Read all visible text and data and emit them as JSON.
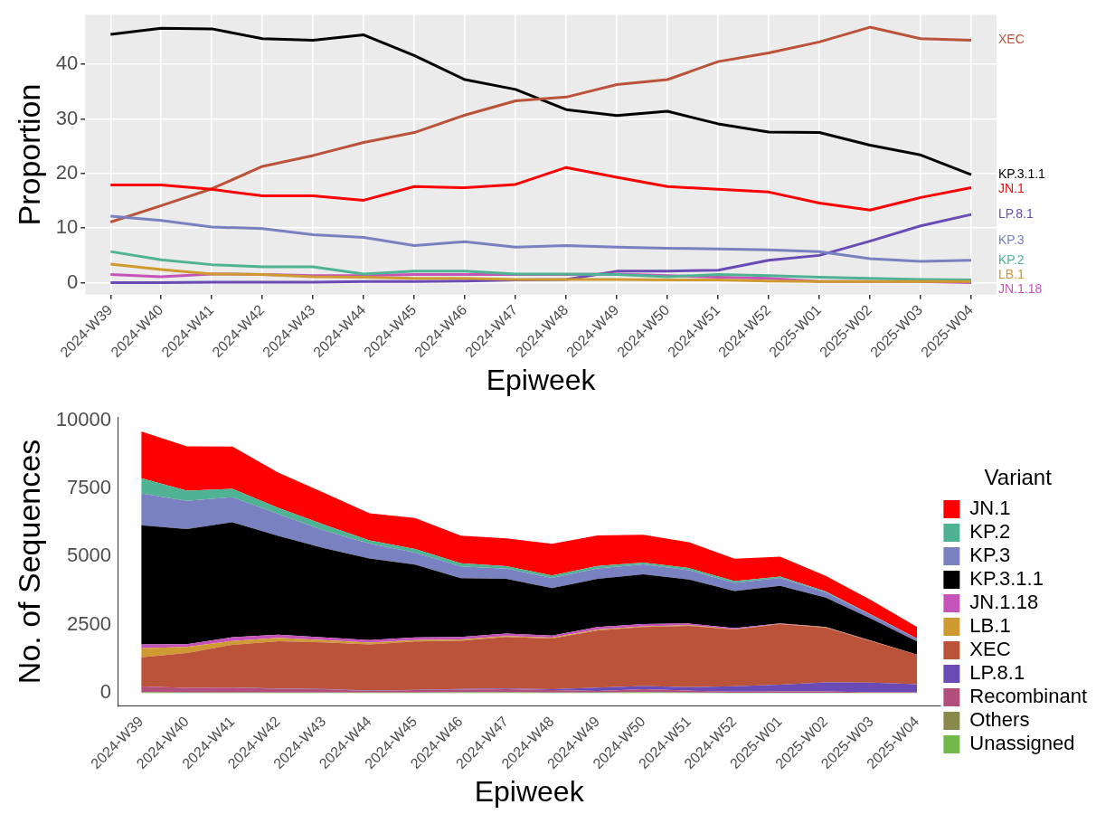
{
  "chart_data": [
    {
      "type": "line",
      "xlabel": "Epiweek",
      "ylabel": "Proportion",
      "categories": [
        "2024-W39",
        "2024-W40",
        "2024-W41",
        "2024-W42",
        "2024-W43",
        "2024-W44",
        "2024-W45",
        "2024-W46",
        "2024-W47",
        "2024-W48",
        "2024-W49",
        "2024-W50",
        "2024-W51",
        "2024-W52",
        "2025-W01",
        "2025-W02",
        "2025-W03",
        "2025-W04"
      ],
      "ylim": [
        -2.2,
        49.1
      ],
      "yticks": [
        0,
        10,
        20,
        30,
        40
      ],
      "grid": true,
      "series": [
        {
          "name": "KP.3.1.1",
          "color": "#000000",
          "values": [
            45.5,
            46.6,
            46.5,
            44.7,
            44.4,
            45.4,
            41.6,
            37.2,
            35.4,
            31.7,
            30.6,
            31.4,
            29.1,
            27.6,
            27.5,
            25.2,
            23.4,
            19.8
          ]
        },
        {
          "name": "XEC",
          "color": "#bb533b",
          "values": [
            11.1,
            14.1,
            17.2,
            21.3,
            23.3,
            25.7,
            27.5,
            30.7,
            33.3,
            34.0,
            36.3,
            37.2,
            40.5,
            42.1,
            44.1,
            46.8,
            44.7,
            44.4
          ]
        },
        {
          "name": "JN.1",
          "color": "#ff0000",
          "values": [
            17.9,
            17.9,
            17.1,
            15.9,
            15.9,
            15.1,
            17.6,
            17.4,
            18.0,
            21.1,
            19.3,
            17.6,
            17.1,
            16.6,
            14.6,
            13.3,
            15.6,
            17.4
          ]
        },
        {
          "name": "LP.8.1",
          "color": "#6a4ab4",
          "values": [
            0,
            0,
            0.1,
            0.1,
            0.1,
            0.2,
            0.2,
            0.3,
            0.5,
            0.6,
            2.1,
            2.1,
            2.3,
            4.1,
            5.0,
            7.6,
            10.4,
            12.5
          ]
        },
        {
          "name": "KP.3",
          "color": "#7a81c0",
          "values": [
            12.2,
            11.4,
            10.2,
            9.9,
            8.8,
            8.3,
            6.8,
            7.5,
            6.5,
            6.8,
            6.5,
            6.3,
            6.2,
            6.0,
            5.7,
            4.4,
            3.9,
            4.1
          ]
        },
        {
          "name": "JN.1.18",
          "color": "#c653b9",
          "values": [
            1.5,
            1.1,
            1.6,
            1.5,
            1.3,
            1.3,
            1.5,
            1.5,
            1.5,
            1.5,
            1.6,
            1.3,
            1.0,
            0.8,
            0.2,
            0.2,
            0.2,
            0
          ]
        },
        {
          "name": "KP.2",
          "color": "#4fb393",
          "values": [
            5.7,
            4.2,
            3.3,
            2.9,
            2.9,
            1.6,
            2.1,
            2.1,
            1.6,
            1.6,
            1.5,
            1.1,
            1.5,
            1.3,
            1.0,
            0.8,
            0.6,
            0.5
          ]
        },
        {
          "name": "LB.1",
          "color": "#cf9a31",
          "values": [
            3.4,
            2.4,
            1.6,
            1.5,
            1.1,
            1.0,
            0.8,
            0.8,
            0.6,
            0.6,
            0.6,
            0.5,
            0.5,
            0.3,
            0.2,
            0.2,
            0.2,
            0.2
          ]
        }
      ]
    },
    {
      "type": "area",
      "stacked": true,
      "xlabel": "Epiweek",
      "ylabel": "No. of Sequences",
      "legend": "right",
      "legend_title": "Variant",
      "categories": [
        "2024-W39",
        "2024-W40",
        "2024-W41",
        "2024-W42",
        "2024-W43",
        "2024-W44",
        "2024-W45",
        "2024-W46",
        "2024-W47",
        "2024-W48",
        "2024-W49",
        "2024-W50",
        "2024-W51",
        "2024-W52",
        "2025-W01",
        "2025-W02",
        "2025-W03",
        "2025-W04"
      ],
      "ylim": [
        -480,
        10110
      ],
      "yticks": [
        0,
        2500,
        5000,
        7500,
        10000
      ],
      "series": [
        {
          "name": "Unassigned",
          "color": "#72b84a",
          "values": [
            30,
            20,
            20,
            20,
            20,
            20,
            20,
            30,
            30,
            20,
            20,
            30,
            20,
            10,
            10,
            10,
            10,
            10
          ]
        },
        {
          "name": "Others",
          "color": "#88894a",
          "values": [
            null,
            null,
            null,
            null,
            null,
            null,
            null,
            null,
            null,
            null,
            null,
            null,
            null,
            null,
            null,
            null,
            null,
            null
          ]
        },
        {
          "name": "Recombinant",
          "color": "#b24e7c",
          "values": [
            210,
            170,
            180,
            140,
            120,
            60,
            90,
            100,
            110,
            90,
            60,
            110,
            70,
            40,
            50,
            50,
            20,
            20
          ]
        },
        {
          "name": "LP.8.1",
          "color": "#6a4ab4",
          "values": [
            0,
            0,
            10,
            10,
            10,
            10,
            10,
            20,
            30,
            30,
            120,
            120,
            130,
            200,
            250,
            330,
            350,
            300
          ]
        },
        {
          "name": "XEC",
          "color": "#bb533b",
          "values": [
            1070,
            1280,
            1560,
            1730,
            1710,
            1690,
            1770,
            1770,
            1890,
            1860,
            2100,
            2160,
            2240,
            2080,
            2220,
            2010,
            1520,
            1080
          ]
        },
        {
          "name": "LB.1",
          "color": "#cf9a31",
          "values": [
            330,
            220,
            140,
            120,
            80,
            70,
            50,
            50,
            30,
            30,
            30,
            30,
            30,
            10,
            10,
            10,
            10,
            0
          ]
        },
        {
          "name": "JN.1.18",
          "color": "#c653b9",
          "values": [
            140,
            100,
            140,
            120,
            100,
            90,
            100,
            90,
            90,
            80,
            90,
            80,
            60,
            40,
            10,
            10,
            10,
            0
          ]
        },
        {
          "name": "KP.3.1.1",
          "color": "#000000",
          "values": [
            4370,
            4220,
            4210,
            3620,
            3270,
            2990,
            2670,
            2150,
            2010,
            1740,
            1770,
            1820,
            1610,
            1360,
            1380,
            1080,
            800,
            480
          ]
        },
        {
          "name": "KP.3",
          "color": "#7a81c0",
          "values": [
            1170,
            1030,
            920,
            800,
            650,
            550,
            440,
            430,
            370,
            370,
            380,
            370,
            340,
            300,
            290,
            190,
            130,
            100
          ]
        },
        {
          "name": "KP.2",
          "color": "#4fb393",
          "values": [
            550,
            380,
            300,
            230,
            210,
            110,
            130,
            120,
            90,
            90,
            90,
            60,
            80,
            60,
            50,
            30,
            20,
            10
          ]
        },
        {
          "name": "JN.1",
          "color": "#ff0000",
          "values": [
            1720,
            1620,
            1550,
            1290,
            1170,
            1000,
            1130,
            1010,
            1020,
            1160,
            1120,
            1020,
            950,
            820,
            730,
            570,
            530,
            420
          ]
        }
      ]
    }
  ]
}
